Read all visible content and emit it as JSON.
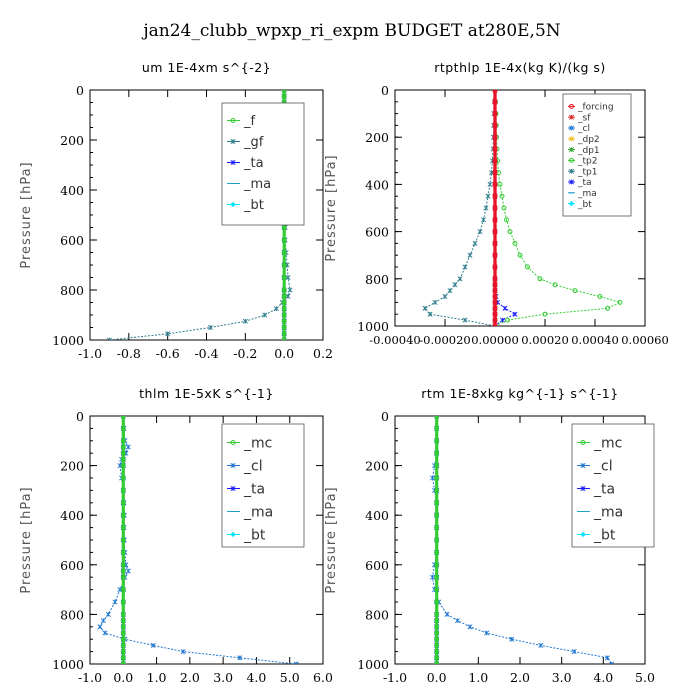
{
  "figure": {
    "title": "jan24_clubb_wpxp_ri_expm  BUDGET at280E,5N",
    "colors": {
      "_f": "#33cc33",
      "_mc": "#33cc33",
      "_gf": "#2e7d8c",
      "_cl": "#1f77d0",
      "_ta": "#1a1aff",
      "_ma": "#1fa0c8",
      "_bt": "#00e5ff",
      "_forcing": "#e8142a",
      "_sf": "#d62728",
      "_dp2": "#f0c020",
      "_dp1": "#2ca02c",
      "_tp2": "#33cc33",
      "_tp1": "#2e7d8c"
    }
  },
  "chart_data": [
    {
      "type": "line",
      "title": "um  1E-4xm s^{-2}",
      "ylabel": "Pressure [hPa]",
      "xlim": [
        -1.0,
        0.2
      ],
      "ylim": [
        1000,
        0
      ],
      "xticks": [
        "-1.0",
        "-0.8",
        "-0.6",
        "-0.4",
        "-0.2",
        "0.0",
        "0.2"
      ],
      "xtick_values": [
        -1.0,
        -0.8,
        -0.6,
        -0.4,
        -0.2,
        0.0,
        0.2
      ],
      "yticks": [
        "0",
        "200",
        "400",
        "600",
        "800",
        "1000"
      ],
      "ytick_values": [
        0,
        200,
        400,
        600,
        800,
        1000
      ],
      "legend": {
        "position": "top-right",
        "entries": [
          "_f",
          "_gf",
          "_ta",
          "_ma",
          "_bt"
        ]
      },
      "pressure": [
        0,
        25,
        50,
        75,
        100,
        125,
        150,
        175,
        200,
        250,
        300,
        350,
        400,
        450,
        500,
        550,
        600,
        650,
        700,
        750,
        800,
        825,
        850,
        875,
        900,
        925,
        950,
        975,
        1000
      ],
      "series": [
        {
          "name": "_f",
          "values": [
            0,
            0,
            0,
            0,
            0,
            0,
            0,
            0,
            0,
            0,
            0,
            0,
            0,
            0,
            0,
            0,
            0,
            0,
            0,
            0,
            0,
            0,
            0,
            0,
            0,
            0,
            0,
            0,
            0
          ]
        },
        {
          "name": "_gf",
          "values": [
            0,
            0,
            0,
            0.005,
            0.01,
            0.02,
            0.04,
            0.02,
            0.01,
            0.005,
            0.005,
            0.005,
            0.005,
            0.005,
            0.005,
            0.005,
            0.005,
            0.01,
            0.015,
            0.02,
            0.03,
            0.02,
            -0.01,
            -0.04,
            -0.1,
            -0.2,
            -0.38,
            -0.6,
            -0.9
          ]
        },
        {
          "name": "_ta",
          "values": [
            0,
            0,
            0,
            0,
            0,
            0,
            0,
            0,
            0,
            0,
            0,
            0,
            0,
            0,
            0,
            0,
            0,
            0,
            0,
            0,
            0,
            0,
            0,
            0,
            0,
            0,
            0,
            0,
            0
          ]
        },
        {
          "name": "_ma",
          "values": [
            0,
            0,
            0,
            0,
            0,
            0,
            0,
            0,
            0,
            0,
            0,
            0,
            0,
            0,
            0,
            0,
            0,
            0,
            0,
            0,
            0,
            0,
            0,
            0,
            0,
            0,
            0,
            0,
            0
          ]
        },
        {
          "name": "_bt",
          "values": [
            0,
            0,
            0,
            0,
            0,
            0,
            0,
            0,
            0,
            0,
            0,
            0,
            0,
            0,
            0,
            0,
            0,
            0,
            0,
            0,
            0,
            0,
            0,
            0,
            0,
            0,
            0,
            0,
            0
          ]
        }
      ]
    },
    {
      "type": "line",
      "title": "rtpthlp  1E-4x(kg K)/(kg s)",
      "ylabel": "Pressure [hPa]",
      "xlim": [
        -0.0004,
        0.0006
      ],
      "ylim": [
        1000,
        0
      ],
      "xticks": [
        "-0.00040",
        "-0.00020",
        "0.00000",
        "0.00020",
        "0.00040",
        "0.00060"
      ],
      "xtick_values": [
        -0.0004,
        -0.0002,
        0.0,
        0.0002,
        0.0004,
        0.0006
      ],
      "yticks": [
        "0",
        "200",
        "400",
        "600",
        "800",
        "1000"
      ],
      "ytick_values": [
        0,
        200,
        400,
        600,
        800,
        1000
      ],
      "legend": {
        "position": "top-right",
        "entries": [
          "_forcing",
          "_sf",
          "_cl",
          "_dp2",
          "_dp1",
          "_tp2",
          "_tp1",
          "_ta",
          "_ma",
          "_bt"
        ]
      },
      "pressure": [
        0,
        50,
        100,
        150,
        200,
        250,
        300,
        350,
        400,
        450,
        500,
        550,
        600,
        650,
        700,
        750,
        800,
        825,
        850,
        875,
        900,
        925,
        950,
        975,
        1000
      ],
      "series": [
        {
          "name": "_forcing",
          "values": [
            0,
            0,
            0,
            0,
            0,
            0,
            0,
            0,
            0,
            0,
            0,
            0,
            0,
            0,
            0,
            0,
            0,
            0,
            0,
            0,
            0,
            0,
            0,
            0,
            0
          ]
        },
        {
          "name": "_sf",
          "values": [
            0,
            0,
            0,
            0,
            0,
            0,
            0,
            0,
            0,
            0,
            0,
            0,
            0,
            0,
            0,
            0,
            0,
            0,
            0,
            0,
            0,
            0,
            0,
            0,
            0
          ]
        },
        {
          "name": "_cl",
          "values": [
            0,
            0,
            0,
            0,
            0,
            0,
            0,
            0,
            0,
            0,
            0,
            0,
            0,
            0,
            0,
            0,
            0,
            0,
            0,
            0,
            0,
            0,
            0,
            0,
            0
          ]
        },
        {
          "name": "_dp2",
          "values": [
            0,
            0,
            0,
            0,
            0,
            0,
            0,
            0,
            0,
            0,
            0,
            0,
            0,
            0,
            0,
            0,
            0,
            0,
            0,
            0,
            0,
            0,
            0,
            0,
            0
          ]
        },
        {
          "name": "_dp1",
          "values": [
            0,
            0,
            0,
            0,
            0,
            0,
            0,
            0,
            0,
            0,
            0,
            0,
            0,
            0,
            0,
            0,
            0,
            0,
            0,
            0,
            0,
            0,
            0,
            0,
            0
          ]
        },
        {
          "name": "_tp2",
          "values": [
            0,
            2e-06,
            4e-06,
            5e-06,
            6e-06,
            8e-06,
            1e-05,
            1.4e-05,
            2e-05,
            2.8e-05,
            3.6e-05,
            4.6e-05,
            6e-05,
            8e-05,
            0.0001,
            0.00013,
            0.00018,
            0.00024,
            0.00032,
            0.00042,
            0.0005,
            0.00045,
            0.0002,
            5e-05,
            0.0
          ]
        },
        {
          "name": "_tp1",
          "values": [
            0,
            -2e-06,
            -4e-06,
            -5e-06,
            -6e-06,
            -8e-06,
            -1e-05,
            -1.4e-05,
            -2e-05,
            -2.8e-05,
            -3.6e-05,
            -4.6e-05,
            -6e-05,
            -8e-05,
            -0.0001,
            -0.00012,
            -0.00014,
            -0.00016,
            -0.00018,
            -0.0002,
            -0.00024,
            -0.00028,
            -0.00026,
            -0.00012,
            0.0
          ]
        },
        {
          "name": "_ta",
          "values": [
            0,
            0,
            0,
            0,
            0,
            0,
            0,
            0,
            0,
            0,
            0,
            0,
            0,
            0,
            0,
            0,
            0,
            0,
            0,
            4e-06,
            1e-05,
            4e-05,
            8e-05,
            3e-05,
            0.0
          ]
        },
        {
          "name": "_ma",
          "values": [
            0,
            0,
            0,
            0,
            0,
            0,
            0,
            0,
            0,
            0,
            0,
            0,
            0,
            0,
            0,
            0,
            0,
            0,
            0,
            0,
            0,
            0,
            0,
            0,
            0
          ]
        },
        {
          "name": "_bt",
          "values": [
            0,
            0,
            0,
            0,
            0,
            0,
            0,
            0,
            0,
            0,
            0,
            0,
            0,
            0,
            0,
            0,
            0,
            0,
            0,
            0,
            0,
            0,
            0,
            0,
            0
          ]
        }
      ]
    },
    {
      "type": "line",
      "title": "thlm  1E-5xK s^{-1}",
      "ylabel": "Pressure [hPa]",
      "xlim": [
        -1.0,
        6.0
      ],
      "ylim": [
        1000,
        0
      ],
      "xticks": [
        "-1.0",
        "0.0",
        "1.0",
        "2.0",
        "3.0",
        "4.0",
        "5.0",
        "6.0"
      ],
      "xtick_values": [
        -1,
        0,
        1,
        2,
        3,
        4,
        5,
        6
      ],
      "yticks": [
        "0",
        "200",
        "400",
        "600",
        "800",
        "1000"
      ],
      "ytick_values": [
        0,
        200,
        400,
        600,
        800,
        1000
      ],
      "legend": {
        "position": "top-right",
        "entries": [
          "_mc",
          "_cl",
          "_ta",
          "_ma",
          "_bt"
        ]
      },
      "pressure": [
        0,
        50,
        100,
        125,
        150,
        175,
        200,
        250,
        300,
        350,
        400,
        450,
        500,
        550,
        600,
        625,
        650,
        700,
        750,
        800,
        825,
        850,
        875,
        900,
        925,
        950,
        975,
        1000
      ],
      "series": [
        {
          "name": "_mc",
          "values": [
            0,
            0,
            0,
            0,
            0,
            0,
            0,
            0,
            0,
            0,
            0,
            0,
            0,
            0,
            0,
            0,
            0,
            0,
            0,
            0,
            0,
            0,
            0,
            0,
            0,
            0,
            0,
            0
          ]
        },
        {
          "name": "_cl",
          "values": [
            0,
            0.02,
            0.05,
            0.15,
            0.08,
            -0.05,
            -0.1,
            -0.05,
            0,
            0.02,
            0.03,
            0.02,
            0.03,
            0.05,
            0.08,
            0.15,
            0.05,
            -0.1,
            -0.25,
            -0.45,
            -0.6,
            -0.7,
            -0.55,
            0.05,
            0.9,
            1.8,
            3.5,
            5.2
          ]
        },
        {
          "name": "_ta",
          "values": [
            0,
            0,
            0,
            0,
            0,
            0,
            0,
            0,
            0,
            0,
            0,
            0,
            0,
            0,
            0,
            0,
            0,
            0,
            0,
            0,
            0,
            0,
            0,
            0,
            0,
            0,
            0,
            0
          ]
        },
        {
          "name": "_ma",
          "values": [
            0,
            0,
            0,
            0,
            0,
            0,
            0,
            0,
            0,
            0,
            0,
            0,
            0,
            0,
            0,
            0,
            0,
            0,
            0,
            0,
            0,
            0,
            0,
            0,
            0,
            0,
            0,
            0
          ]
        },
        {
          "name": "_bt",
          "values": [
            0,
            0,
            0,
            0,
            0,
            0,
            0,
            0,
            0,
            0,
            0,
            0,
            0,
            0,
            0,
            0,
            0,
            0,
            0,
            0,
            0,
            0,
            0,
            0,
            0,
            0,
            0,
            0
          ]
        }
      ]
    },
    {
      "type": "line",
      "title": "rtm  1E-8xkg kg^{-1} s^{-1}",
      "ylabel": "Pressure [hPa]",
      "xlim": [
        -1.0,
        5.0
      ],
      "ylim": [
        1000,
        0
      ],
      "xticks": [
        "-1.0",
        "0.0",
        "1.0",
        "2.0",
        "3.0",
        "4.0",
        "5.0"
      ],
      "xtick_values": [
        -1,
        0,
        1,
        2,
        3,
        4,
        5
      ],
      "yticks": [
        "0",
        "200",
        "400",
        "600",
        "800",
        "1000"
      ],
      "ytick_values": [
        0,
        200,
        400,
        600,
        800,
        1000
      ],
      "legend": {
        "position": "top-right",
        "entries": [
          "_mc",
          "_cl",
          "_ta",
          "_ma",
          "_bt"
        ]
      },
      "pressure": [
        0,
        50,
        100,
        150,
        200,
        250,
        300,
        350,
        400,
        450,
        500,
        550,
        600,
        650,
        700,
        750,
        800,
        825,
        850,
        875,
        900,
        925,
        950,
        975,
        1000
      ],
      "series": [
        {
          "name": "_mc",
          "values": [
            0,
            0,
            0,
            0,
            0,
            0,
            0,
            0,
            0,
            0,
            0,
            0,
            0,
            0,
            0,
            0,
            0,
            0,
            0,
            0,
            0,
            0,
            0,
            0,
            0
          ]
        },
        {
          "name": "_cl",
          "values": [
            0,
            0,
            0,
            0,
            -0.05,
            -0.1,
            -0.05,
            0,
            0,
            0,
            0,
            0,
            -0.05,
            -0.1,
            -0.05,
            0.05,
            0.25,
            0.5,
            0.8,
            1.2,
            1.8,
            2.5,
            3.3,
            4.1,
            4.2
          ]
        },
        {
          "name": "_ta",
          "values": [
            0,
            0,
            0,
            0,
            0,
            0,
            0,
            0,
            0,
            0,
            0,
            0,
            0,
            0,
            0,
            0,
            0,
            0,
            0,
            0,
            0,
            0,
            0,
            0,
            0
          ]
        },
        {
          "name": "_ma",
          "values": [
            0,
            0,
            0,
            0,
            0,
            0,
            0,
            0,
            0,
            0,
            0,
            0,
            0,
            0,
            0,
            0,
            0,
            0,
            0,
            0,
            0,
            0,
            0,
            0,
            0
          ]
        },
        {
          "name": "_bt",
          "values": [
            0,
            0,
            0,
            0,
            0,
            0,
            0,
            0,
            0,
            0,
            0,
            0,
            0,
            0,
            0,
            0,
            0,
            0,
            0,
            0,
            0,
            0,
            0,
            0,
            0
          ]
        }
      ]
    }
  ]
}
